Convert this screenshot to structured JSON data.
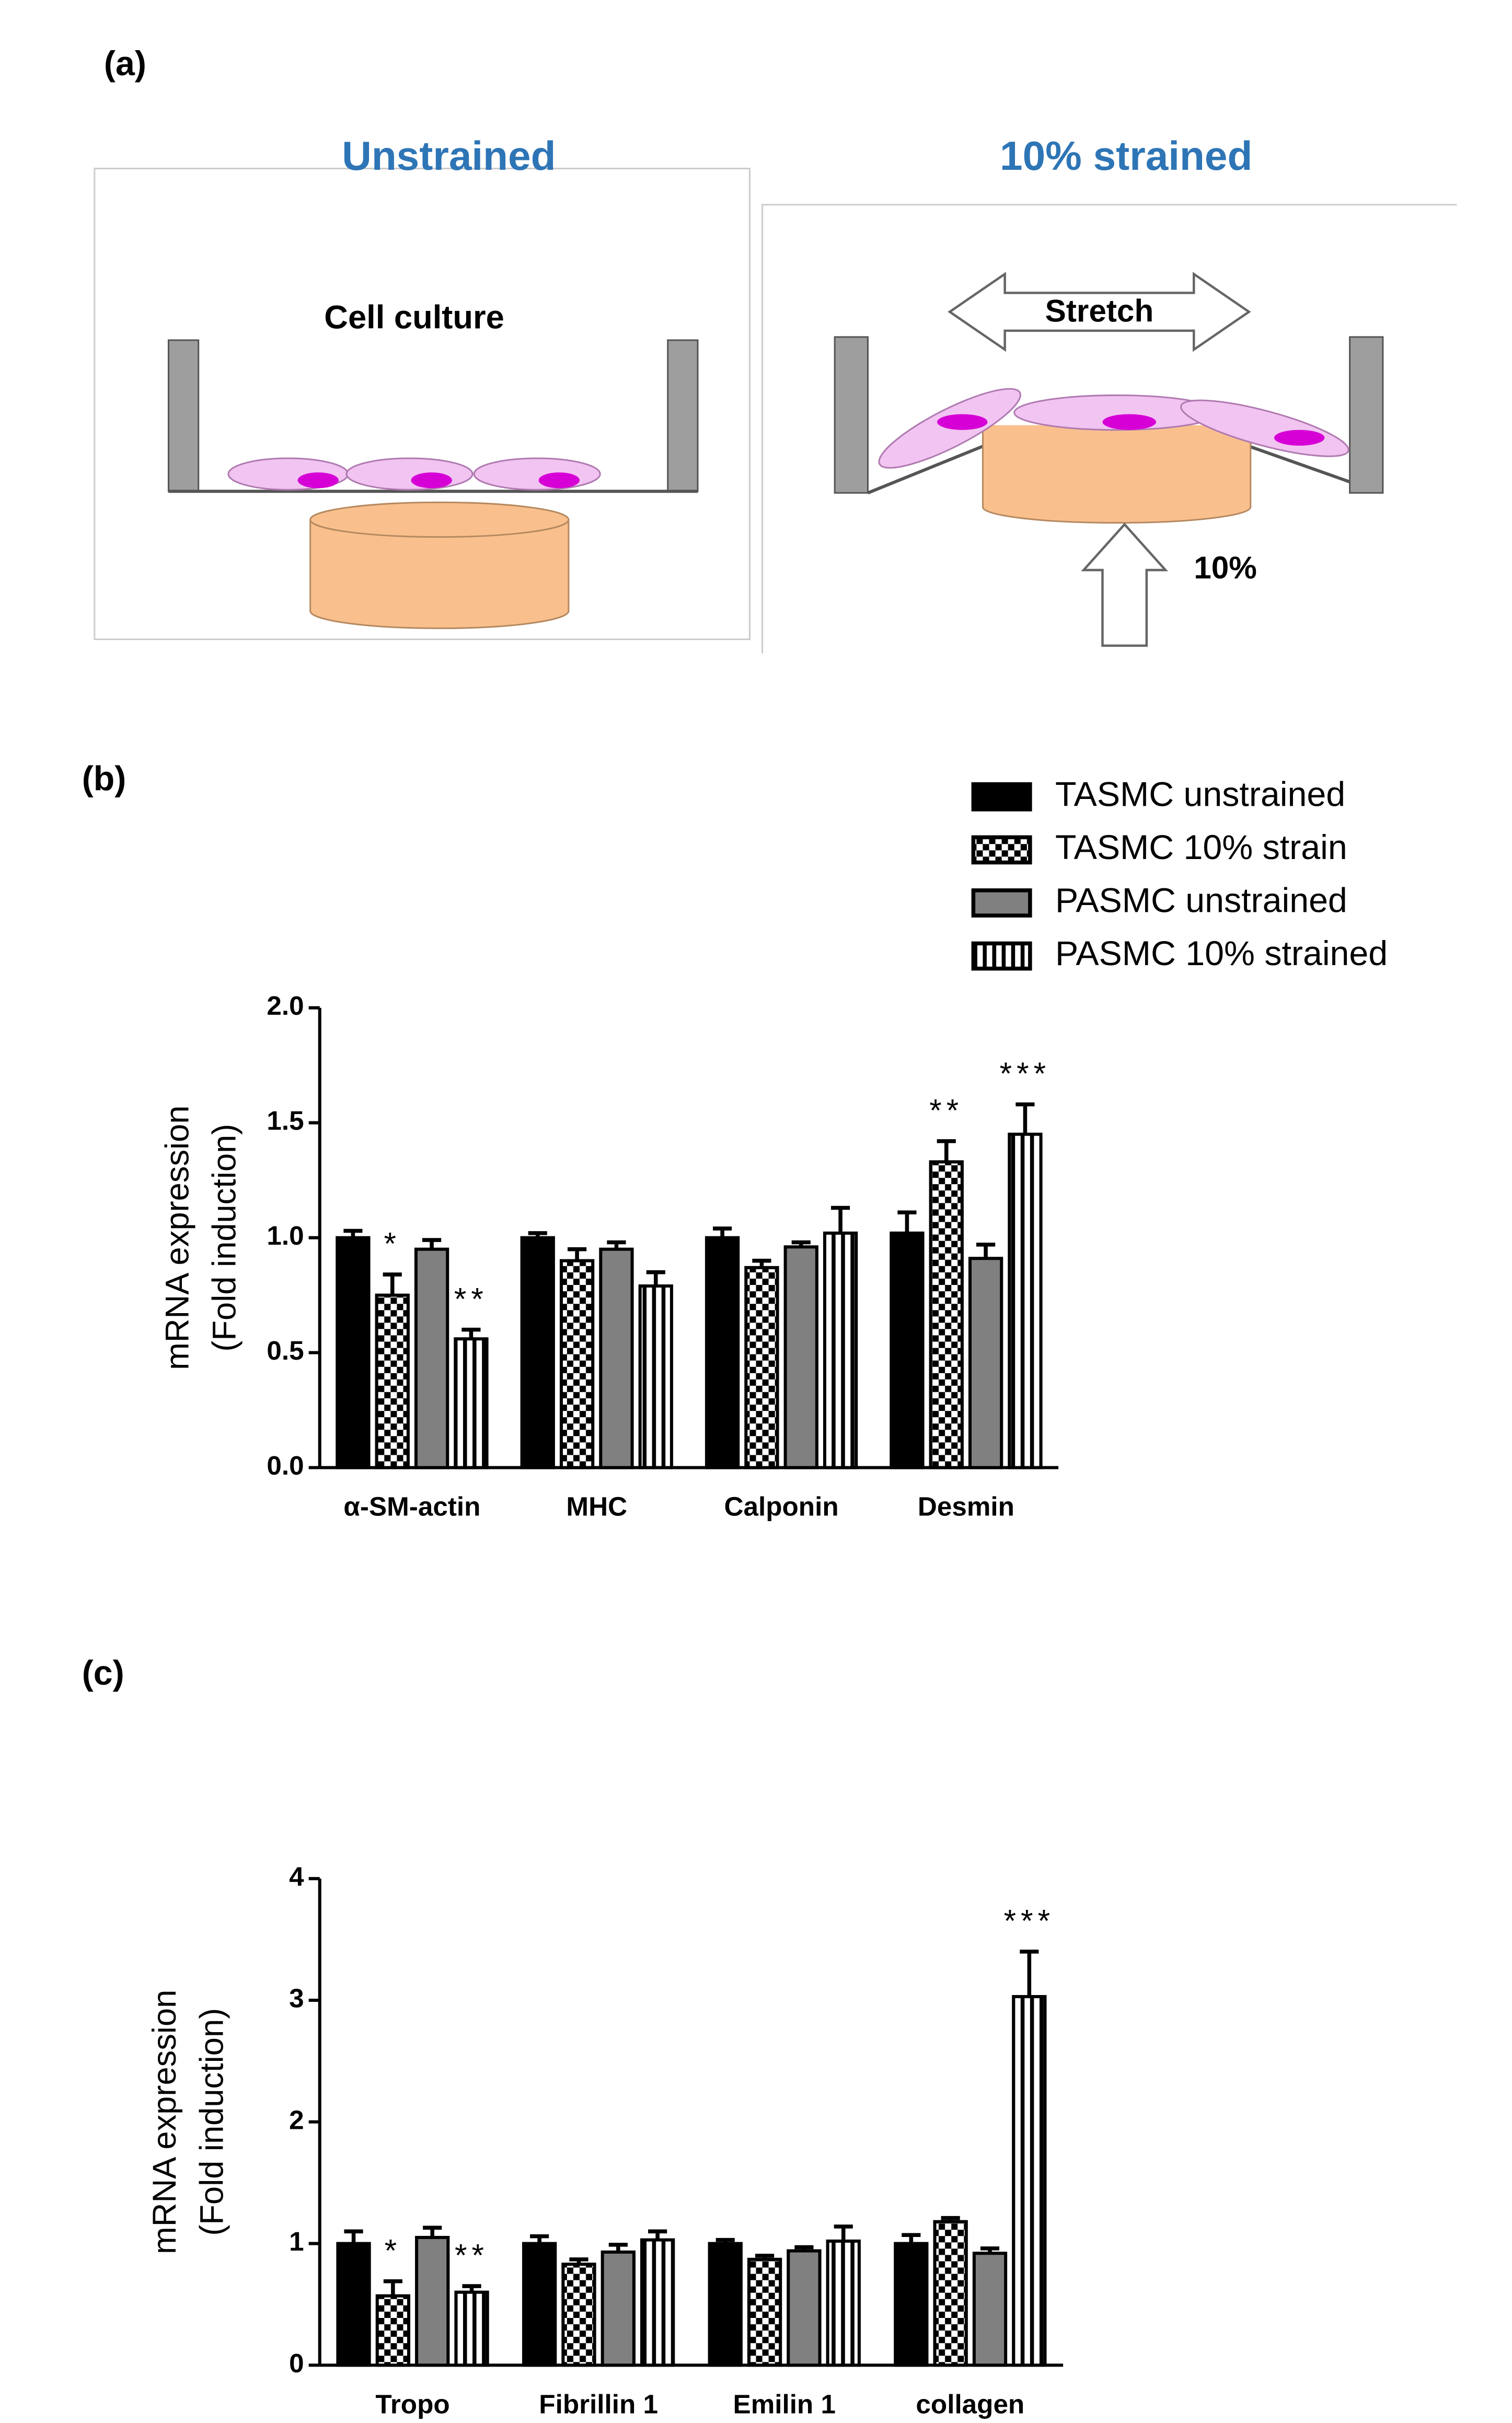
{
  "panels": {
    "a": "(a)",
    "b": "(b)",
    "c": "(c)"
  },
  "diagram": {
    "left_title": "Unstrained",
    "right_title": "10% strained",
    "left_label": "Cell culture",
    "stretch_label": "Stretch",
    "strain_label": "10%"
  },
  "chart_data": [
    {
      "type": "bar",
      "ylabel": [
        "mRNA expression",
        "(Fold induction)"
      ],
      "categories": [
        "α-SM-actin",
        "MHC",
        "Calponin",
        "Desmin"
      ],
      "ylim": [
        0,
        2
      ],
      "yticks": [
        {
          "value": 0,
          "label": "0.0"
        },
        0.5,
        {
          "value": 1,
          "label": "1.0"
        },
        1.5,
        {
          "value": 2,
          "label": "2.0"
        }
      ],
      "legend": "top-right",
      "series": [
        {
          "name": "TASMC unstrained",
          "color": "#000000",
          "pattern": "solid",
          "values": [
            1.0,
            1.0,
            1.0,
            1.02
          ],
          "errors": [
            0.03,
            0.02,
            0.04,
            0.09
          ],
          "labels": [
            null,
            null,
            null,
            null
          ]
        },
        {
          "name": "TASMC 10% strain",
          "color": "#000000",
          "pattern": "checker",
          "values": [
            0.75,
            0.9,
            0.87,
            1.33
          ],
          "errors": [
            0.09,
            0.05,
            0.03,
            0.09
          ],
          "labels": [
            "*",
            null,
            null,
            "**"
          ]
        },
        {
          "name": "PASMC unstrained",
          "color": "#808080",
          "pattern": "solid",
          "values": [
            0.95,
            0.95,
            0.96,
            0.91
          ],
          "errors": [
            0.04,
            0.03,
            0.02,
            0.06
          ],
          "labels": [
            null,
            null,
            null,
            null
          ]
        },
        {
          "name": "PASMC 10% strained",
          "color": "#000000",
          "pattern": "stripes",
          "values": [
            0.56,
            0.79,
            1.02,
            1.45
          ],
          "errors": [
            0.04,
            0.06,
            0.11,
            0.13
          ],
          "labels": [
            "**",
            null,
            null,
            "***"
          ]
        }
      ]
    },
    {
      "type": "bar",
      "ylabel": [
        "mRNA expression",
        "(Fold induction)"
      ],
      "categories": [
        "Tropo",
        "Fibrillin 1",
        "Emilin 1",
        "collagen"
      ],
      "ylim": [
        0,
        4
      ],
      "yticks": [
        0,
        1,
        2,
        3,
        4
      ],
      "series": [
        {
          "color": "#000000",
          "pattern": "solid",
          "values": [
            1.0,
            1.0,
            1.0,
            1.0
          ],
          "errors": [
            0.1,
            0.06,
            0.03,
            0.07
          ],
          "labels": [
            null,
            null,
            null,
            null
          ]
        },
        {
          "color": "#000000",
          "pattern": "checker",
          "values": [
            0.57,
            0.83,
            0.87,
            1.18
          ],
          "errors": [
            0.12,
            0.04,
            0.03,
            0.03
          ],
          "labels": [
            "*",
            null,
            null,
            null
          ]
        },
        {
          "color": "#808080",
          "pattern": "solid",
          "values": [
            1.05,
            0.93,
            0.94,
            0.92
          ],
          "errors": [
            0.08,
            0.06,
            0.03,
            0.04
          ],
          "labels": [
            null,
            null,
            null,
            null
          ]
        },
        {
          "color": "#000000",
          "pattern": "stripes",
          "values": [
            0.6,
            1.03,
            1.02,
            3.03
          ],
          "errors": [
            0.05,
            0.07,
            0.12,
            0.37
          ],
          "labels": [
            "**",
            null,
            null,
            "***"
          ]
        }
      ]
    }
  ]
}
